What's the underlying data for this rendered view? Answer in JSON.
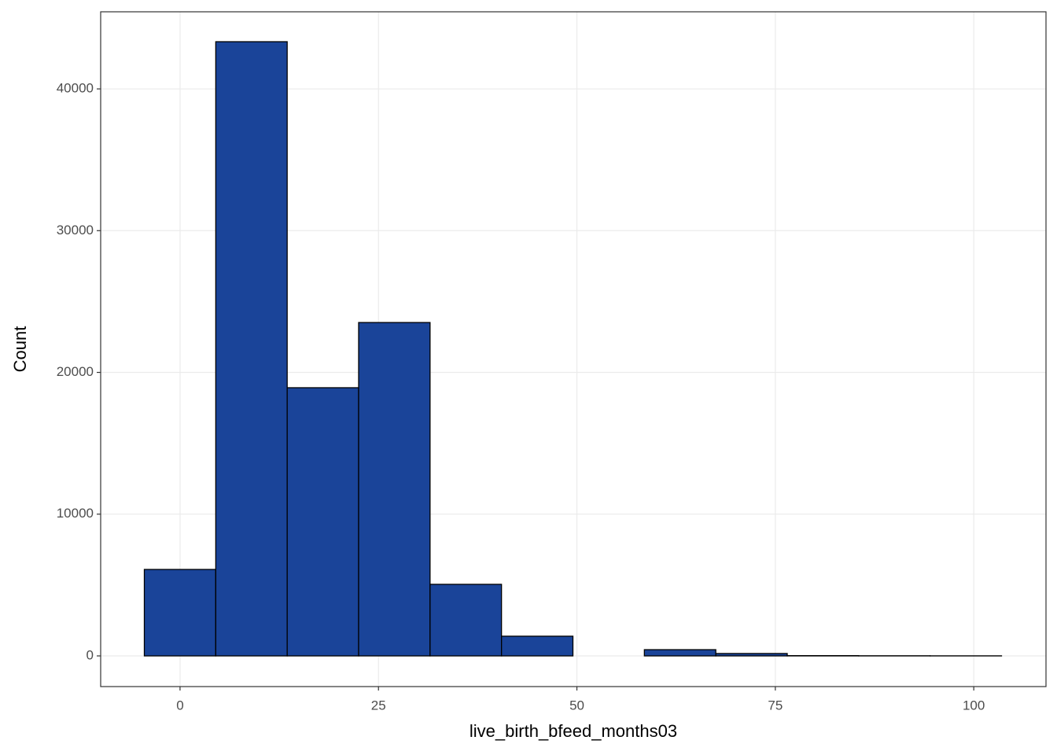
{
  "chart_data": {
    "type": "histogram",
    "x_label": "live_birth_bfeed_months03",
    "y_label": "Count",
    "bins": [
      -4.5,
      4.5,
      13.5,
      22.5,
      31.5,
      40.5,
      49.5,
      58.5,
      67.5,
      76.5,
      85.5,
      94.5,
      103.5
    ],
    "counts": [
      6100,
      43330,
      18920,
      23520,
      5050,
      1390,
      0,
      440,
      170,
      20,
      10,
      5
    ],
    "color": "#1a4499",
    "edge_color": "#000000",
    "xlim": [
      -10,
      109.1
    ],
    "xticks": [
      0,
      25,
      50,
      75,
      100
    ],
    "ylim": [
      -2164,
      45440
    ],
    "yticks": [
      0,
      10000,
      20000,
      30000,
      40000
    ],
    "grid": true
  }
}
